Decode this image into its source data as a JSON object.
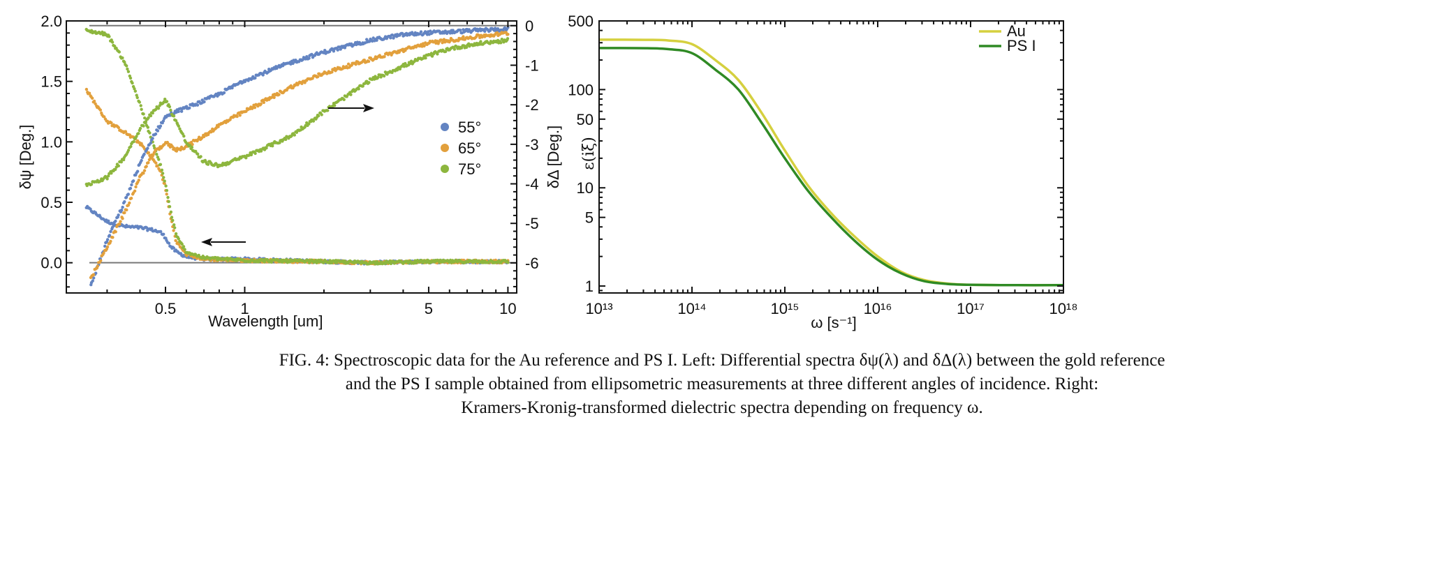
{
  "chart_data": [
    {
      "type": "scatter",
      "xlabel": "Wavelength [um]",
      "ylabel": "δψ [Deg.]",
      "y2label": "δΔ [Deg.]",
      "xscale": "log",
      "xlim": [
        0.21,
        10.8
      ],
      "ylim": [
        -0.25,
        2.0
      ],
      "y2lim": [
        -6.76,
        0.12
      ],
      "grid": false,
      "xticks": [
        0.5,
        1,
        5,
        10
      ],
      "xtick_labels": [
        "0.5",
        "1",
        "5",
        "10"
      ],
      "yticks": [
        0,
        0.5,
        1.0,
        1.5,
        2.0
      ],
      "ytick_labels": [
        "0.0",
        "0.5",
        "1.0",
        "1.5",
        "2.0"
      ],
      "y2ticks": [
        0,
        -1,
        -2,
        -3,
        -4,
        -5,
        -6
      ],
      "y2tick_labels": [
        "0",
        "-1",
        "-2",
        "-3",
        "-4",
        "-5",
        "-6"
      ],
      "reference_lines": [
        {
          "axis": "left",
          "value": 0
        },
        {
          "axis": "right",
          "value": 0
        }
      ],
      "legend": {
        "placement": "center-right",
        "entries": [
          {
            "label": "55°",
            "color": "#6384c2"
          },
          {
            "label": "65°",
            "color": "#e2a03c"
          },
          {
            "label": "75°",
            "color": "#8db63e"
          }
        ]
      },
      "annotations": [
        {
          "type": "arrow",
          "direction": "right",
          "refers_to": "right axis (δΔ)"
        },
        {
          "type": "arrow",
          "direction": "left",
          "refers_to": "left axis (δψ)"
        }
      ],
      "series": [
        {
          "name": "55°",
          "axis": "left",
          "color": "#6384c2",
          "x": [
            0.25,
            0.3,
            0.35,
            0.4,
            0.45,
            0.48,
            0.5,
            0.52,
            0.55,
            0.6,
            0.7,
            1,
            2,
            3,
            5,
            10
          ],
          "y": [
            0.46,
            0.34,
            0.3,
            0.29,
            0.27,
            0.25,
            0.21,
            0.14,
            0.09,
            0.05,
            0.03,
            0.03,
            0.01,
            0.0,
            0.01,
            0.01
          ]
        },
        {
          "name": "65°",
          "axis": "left",
          "color": "#e2a03c",
          "x": [
            0.25,
            0.3,
            0.35,
            0.4,
            0.45,
            0.48,
            0.5,
            0.52,
            0.55,
            0.6,
            0.7,
            1,
            2,
            3,
            5,
            10
          ],
          "y": [
            1.43,
            1.17,
            1.08,
            0.99,
            0.85,
            0.75,
            0.62,
            0.4,
            0.17,
            0.07,
            0.03,
            0.02,
            0.01,
            0.0,
            0.01,
            0.01
          ]
        },
        {
          "name": "75°",
          "axis": "left",
          "color": "#8db63e",
          "x": [
            0.25,
            0.3,
            0.35,
            0.4,
            0.45,
            0.48,
            0.5,
            0.52,
            0.55,
            0.6,
            0.7,
            1,
            2,
            3,
            5,
            10
          ],
          "y": [
            1.92,
            1.89,
            1.66,
            1.31,
            0.97,
            0.8,
            0.65,
            0.45,
            0.22,
            0.09,
            0.04,
            0.02,
            0.01,
            0.0,
            0.01,
            0.01
          ]
        },
        {
          "name": "55°",
          "axis": "right",
          "color": "#6384c2",
          "x": [
            0.26,
            0.3,
            0.35,
            0.4,
            0.45,
            0.5,
            0.55,
            0.6,
            0.7,
            0.8,
            1,
            1.5,
            2,
            3,
            4,
            5,
            6,
            8,
            10
          ],
          "y": [
            -6.58,
            -5.43,
            -4.46,
            -3.49,
            -2.79,
            -2.31,
            -2.17,
            -2.08,
            -1.9,
            -1.73,
            -1.38,
            -0.93,
            -0.67,
            -0.37,
            -0.23,
            -0.18,
            -0.16,
            -0.11,
            -0.09
          ]
        },
        {
          "name": "65°",
          "axis": "right",
          "color": "#e2a03c",
          "x": [
            0.26,
            0.3,
            0.35,
            0.4,
            0.45,
            0.5,
            0.55,
            0.6,
            0.7,
            0.8,
            1,
            1.5,
            2,
            3,
            4,
            5,
            6,
            8,
            10
          ],
          "y": [
            -6.4,
            -5.6,
            -4.73,
            -3.84,
            -3.23,
            -2.96,
            -3.14,
            -3.05,
            -2.79,
            -2.52,
            -2.17,
            -1.55,
            -1.2,
            -0.85,
            -0.62,
            -0.44,
            -0.37,
            -0.26,
            -0.19
          ]
        },
        {
          "name": "75°",
          "axis": "right",
          "color": "#8db63e",
          "x": [
            0.25,
            0.3,
            0.35,
            0.4,
            0.45,
            0.5,
            0.55,
            0.6,
            0.7,
            0.8,
            1,
            1.5,
            2,
            3,
            4,
            5,
            6,
            8,
            10
          ],
          "y": [
            -4.02,
            -3.84,
            -3.32,
            -2.61,
            -2.17,
            -1.87,
            -2.43,
            -2.96,
            -3.44,
            -3.54,
            -3.32,
            -2.79,
            -2.17,
            -1.38,
            -1.02,
            -0.76,
            -0.58,
            -0.44,
            -0.37
          ]
        }
      ]
    },
    {
      "type": "line",
      "xlabel": "ω [s⁻¹]",
      "ylabel": "ε(iξ)",
      "xscale": "log",
      "yscale": "log",
      "xlim": [
        10000000000000.0,
        1e+18
      ],
      "ylim": [
        0.85,
        500
      ],
      "grid": false,
      "xticks": [
        10000000000000.0,
        100000000000000.0,
        1000000000000000.0,
        1e+16,
        1e+17,
        1e+18
      ],
      "xtick_labels": [
        "10¹³",
        "10¹⁴",
        "10¹⁵",
        "10¹⁶",
        "10¹⁷",
        "10¹⁸"
      ],
      "yticks": [
        1,
        5,
        10,
        50,
        100,
        500
      ],
      "ytick_labels": [
        "1",
        "5",
        "10",
        "50",
        "100",
        "500"
      ],
      "legend": {
        "placement": "top-right",
        "entries": [
          {
            "label": "Au",
            "color": "#d5d03f"
          },
          {
            "label": "PS I",
            "color": "#2f8a24"
          }
        ]
      },
      "x": [
        10000000000000.0,
        31600000000000.0,
        56200000000000.0,
        100000000000000.0,
        178000000000000.0,
        316000000000000.0,
        562000000000000.0,
        1000000000000000.0,
        1780000000000000.0,
        3160000000000000.0,
        5620000000000000.0,
        1e+16,
        1.78e+16,
        3.16e+16,
        5.62e+16,
        1e+17,
        3.16e+17,
        1e+18
      ],
      "series": [
        {
          "name": "Au",
          "color": "#d5d03f",
          "y": [
            322,
            321,
            316,
            290,
            200,
            125,
            58,
            24,
            10.5,
            5.5,
            3.2,
            2.0,
            1.4,
            1.15,
            1.06,
            1.03,
            1.02,
            1.02
          ]
        },
        {
          "name": "PS I",
          "color": "#2f8a24",
          "y": [
            265,
            264,
            258,
            235,
            160,
            100,
            46,
            20,
            9.3,
            5.0,
            2.9,
            1.85,
            1.35,
            1.12,
            1.05,
            1.03,
            1.02,
            1.02
          ]
        }
      ]
    }
  ],
  "caption": {
    "lines": [
      "FIG. 4: Spectroscopic data for the Au reference and PS I. Left: Differential spectra δψ(λ) and δΔ(λ) between the gold reference",
      "and the PS I sample obtained from ellipsometric measurements at three different angles of incidence. Right:",
      "Kramers-Kronig-transformed dielectric spectra depending on frequency ω."
    ]
  }
}
